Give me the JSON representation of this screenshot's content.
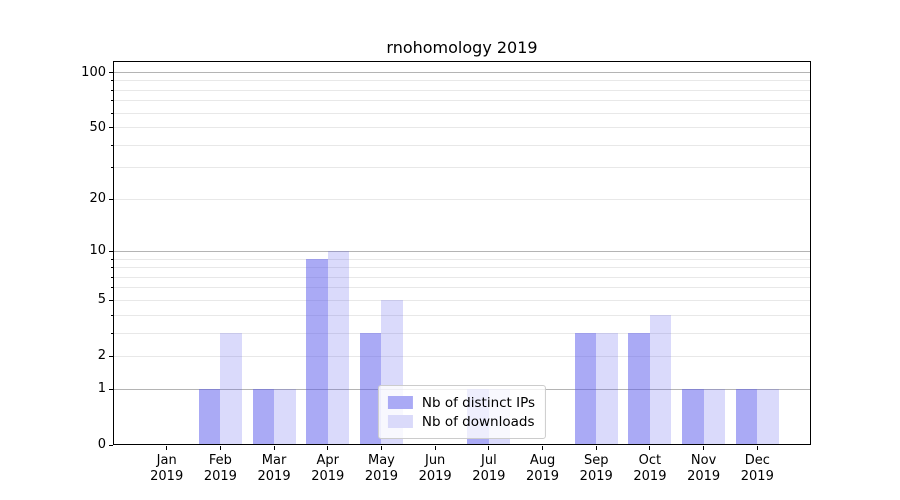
{
  "title": "rnohomology 2019",
  "colors": {
    "bar_distinct_ips": "#aaaaf5",
    "bar_downloads": "#dadafa",
    "bar_distinct_ips_fill": "rgba(85,85,235,0.5)",
    "bar_downloads_fill": "rgba(85,85,235,0.22)",
    "grid_major": "#b4b4b4",
    "grid_minor": "#e8e8e8",
    "axes": "#000000"
  },
  "legend": {
    "items": [
      {
        "label": "Nb of distinct IPs",
        "color": "#aaaaf5"
      },
      {
        "label": "Nb of downloads",
        "color": "#dadafa"
      }
    ],
    "position": "lower center"
  },
  "chart_data": {
    "type": "bar",
    "title": "rnohomology 2019",
    "categories": [
      "Jan",
      "Feb",
      "Mar",
      "Apr",
      "May",
      "Jun",
      "Jul",
      "Aug",
      "Sep",
      "Oct",
      "Nov",
      "Dec"
    ],
    "year": "2019",
    "series": [
      {
        "name": "Nb of distinct IPs",
        "values": [
          0,
          1,
          1,
          9,
          3,
          0,
          1,
          0,
          3,
          3,
          1,
          1
        ],
        "fill": "rgba(85,85,235,0.5)"
      },
      {
        "name": "Nb of downloads",
        "values": [
          0,
          3,
          1,
          10,
          5,
          0,
          1,
          0,
          3,
          4,
          1,
          1
        ],
        "fill": "rgba(85,85,235,0.22)"
      }
    ],
    "xlabel": "",
    "ylabel": "",
    "yscale": "log10(1+v)",
    "ylim": [
      0,
      115.5
    ],
    "xlim": [
      -1,
      12
    ],
    "ytick_labels": [
      "0",
      "1",
      "2",
      "5",
      "10",
      "20",
      "50",
      "100"
    ],
    "yticks": [
      0,
      1,
      2,
      5,
      10,
      20,
      50,
      100
    ],
    "grid_major": [
      1,
      10,
      100
    ],
    "grid_minor": [
      2,
      3,
      4,
      5,
      6,
      7,
      8,
      9,
      20,
      30,
      40,
      50,
      60,
      70,
      80,
      90
    ],
    "bar_width_data_units": 0.4,
    "grid": true,
    "legend_position": "lower center"
  }
}
